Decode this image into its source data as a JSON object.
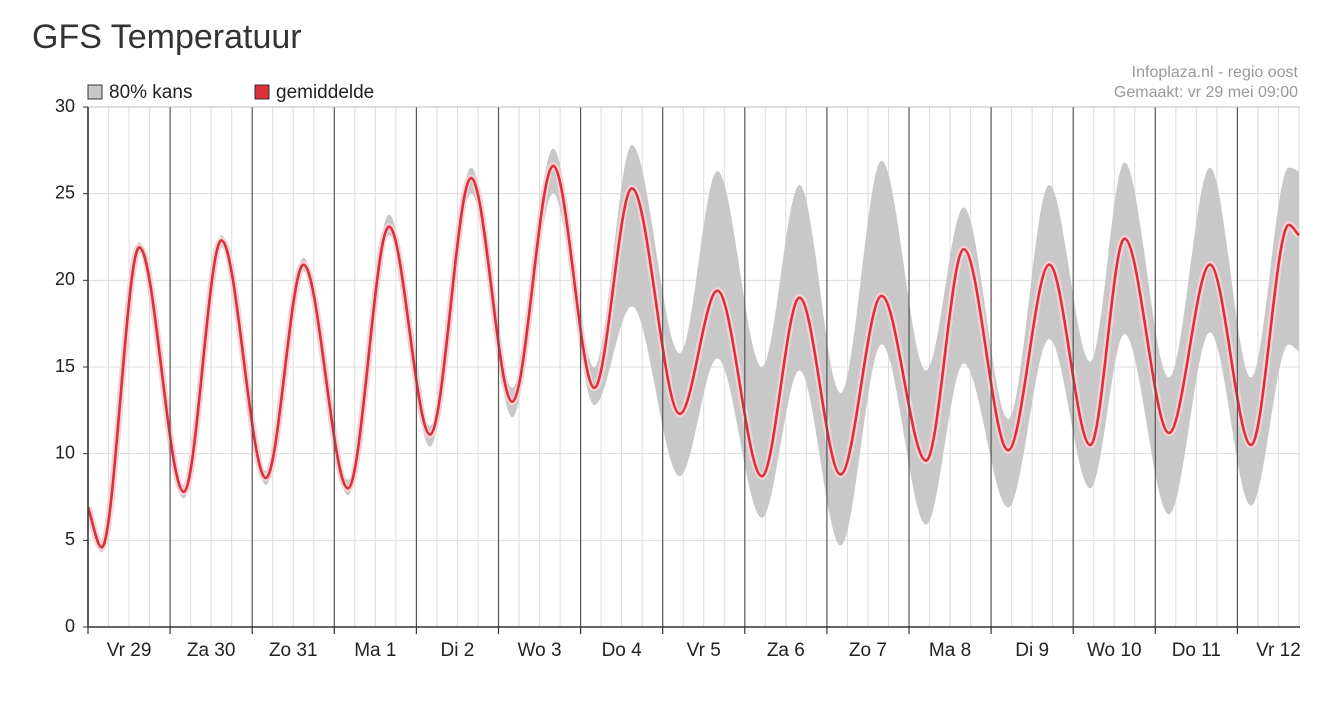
{
  "chart_data": {
    "type": "line",
    "title": "GFS Temperatuur",
    "annotations": [
      "Infoplaza.nl - regio oost",
      "Gemaakt: vr 29 mei 09:00"
    ],
    "categories": [
      "Vr 29",
      "Za 30",
      "Zo 31",
      "Ma 1",
      "Di 2",
      "Wo 3",
      "Do 4",
      "Vr 5",
      "Za 6",
      "Zo 7",
      "Ma 8",
      "Di 9",
      "Wo 10",
      "Do 11",
      "Vr 12"
    ],
    "x": [
      0,
      4,
      15,
      28,
      39,
      52,
      63,
      76,
      88,
      100,
      112,
      124,
      136,
      148,
      159,
      173,
      184,
      197,
      208,
      220,
      232,
      245,
      256,
      269,
      281,
      293,
      303,
      316,
      328,
      340,
      351,
      354
    ],
    "xlim": [
      0,
      354.3
    ],
    "xticks": [
      0,
      24,
      48,
      72,
      96,
      120,
      144,
      168,
      192,
      216,
      240,
      264,
      288,
      312,
      336
    ],
    "xminorticks": [
      6,
      12,
      18,
      30,
      36,
      42,
      54,
      60,
      66,
      78,
      84,
      90,
      102,
      108,
      114,
      126,
      132,
      138,
      150,
      156,
      162,
      174,
      180,
      186,
      198,
      204,
      210,
      222,
      228,
      234,
      246,
      252,
      258,
      270,
      276,
      282,
      294,
      300,
      306,
      318,
      324,
      330,
      342,
      348,
      354
    ],
    "ylim": [
      0,
      30
    ],
    "yticks": [
      0,
      5,
      10,
      15,
      20,
      25,
      30
    ],
    "grid": true,
    "legend": "top-left",
    "series": [
      {
        "name": "80% kans",
        "color": "#c8c8c8",
        "low": [
          6.6,
          4.3,
          21.6,
          7.4,
          21.9,
          8.2,
          20.5,
          7.6,
          22.6,
          10.4,
          25.0,
          12.1,
          25.0,
          12.8,
          18.5,
          8.7,
          15.5,
          6.3,
          14.8,
          4.7,
          16.3,
          5.9,
          15.2,
          6.9,
          16.6,
          8.0,
          16.9,
          6.5,
          17.0,
          7.0,
          16.3,
          15.9
        ],
        "high": [
          7.2,
          4.9,
          22.2,
          8.2,
          22.6,
          9.0,
          21.3,
          8.5,
          23.8,
          11.6,
          26.5,
          13.8,
          27.6,
          15.0,
          27.8,
          15.8,
          26.3,
          15.0,
          25.5,
          13.5,
          26.9,
          14.8,
          24.2,
          12.0,
          25.5,
          15.3,
          26.8,
          14.4,
          26.5,
          14.4,
          26.5,
          26.3
        ]
      },
      {
        "name": "gemiddelde",
        "color": "#d9303c",
        "values": [
          6.9,
          4.6,
          21.9,
          7.8,
          22.3,
          8.6,
          20.9,
          8.0,
          23.1,
          11.1,
          25.9,
          13.0,
          26.6,
          13.8,
          25.3,
          12.3,
          19.4,
          8.7,
          19.0,
          8.8,
          19.1,
          9.6,
          21.8,
          10.2,
          20.9,
          10.5,
          22.4,
          11.2,
          20.9,
          10.5,
          23.2,
          22.6
        ]
      }
    ]
  }
}
